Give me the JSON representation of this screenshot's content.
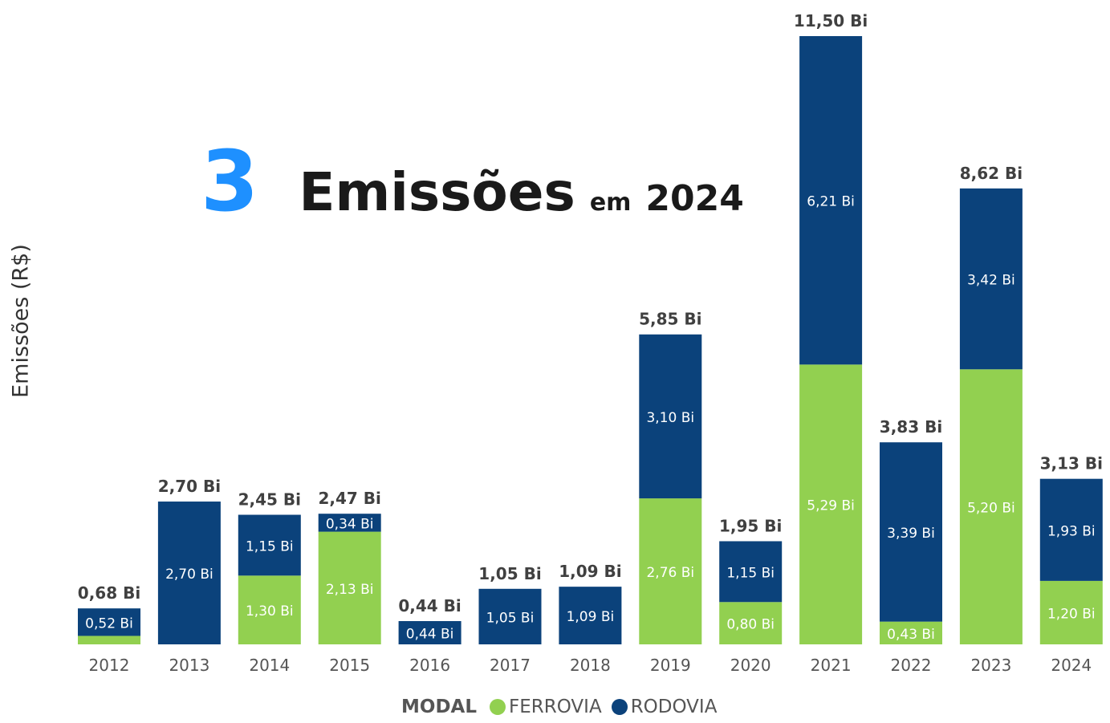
{
  "headline": {
    "count": "3",
    "word": "Emissões",
    "preposition": "em",
    "year": "2024"
  },
  "legend": {
    "title": "MODAL",
    "items": [
      {
        "label": "FERROVIA",
        "color": "#92d050"
      },
      {
        "label": "RODOVIA",
        "color": "#0b427b"
      }
    ]
  },
  "chart_data": {
    "type": "bar",
    "stacked": true,
    "ylabel": "Emissões (R$)",
    "xlabel": "",
    "unit": "Bi",
    "grid": false,
    "legend_position": "bottom",
    "categories": [
      "2012",
      "2013",
      "2014",
      "2015",
      "2016",
      "2017",
      "2018",
      "2019",
      "2020",
      "2021",
      "2022",
      "2023",
      "2024"
    ],
    "series": [
      {
        "name": "FERROVIA",
        "color": "#92d050",
        "values": [
          0.16,
          0,
          1.3,
          2.13,
          0,
          0,
          0,
          2.76,
          0.8,
          5.29,
          0.43,
          5.2,
          1.2
        ],
        "labels": [
          "",
          "",
          "1,30 Bi",
          "2,13 Bi",
          "",
          "",
          "",
          "2,76 Bi",
          "0,80 Bi",
          "5,29 Bi",
          "0,43 Bi",
          "5,20 Bi",
          "1,20 Bi"
        ]
      },
      {
        "name": "RODOVIA",
        "color": "#0b427b",
        "values": [
          0.52,
          2.7,
          1.15,
          0.34,
          0.44,
          1.05,
          1.09,
          3.1,
          1.15,
          6.21,
          3.39,
          3.42,
          1.93
        ],
        "labels": [
          "0,52 Bi",
          "2,70 Bi",
          "1,15 Bi",
          "0,34 Bi",
          "0,44 Bi",
          "1,05 Bi",
          "1,09 Bi",
          "3,10 Bi",
          "1,15 Bi",
          "6,21 Bi",
          "3,39 Bi",
          "3,42 Bi",
          "1,93 Bi"
        ]
      }
    ],
    "totals": [
      0.68,
      2.7,
      2.45,
      2.47,
      0.44,
      1.05,
      1.09,
      5.85,
      1.95,
      11.5,
      3.83,
      8.62,
      3.13
    ],
    "total_labels": [
      "0,68 Bi",
      "2,70 Bi",
      "2,45 Bi",
      "2,47 Bi",
      "0,44 Bi",
      "1,05 Bi",
      "1,09 Bi",
      "5,85 Bi",
      "1,95 Bi",
      "11,50 Bi",
      "3,83 Bi",
      "8,62 Bi",
      "3,13 Bi"
    ],
    "ylim": [
      0,
      11.5
    ]
  }
}
